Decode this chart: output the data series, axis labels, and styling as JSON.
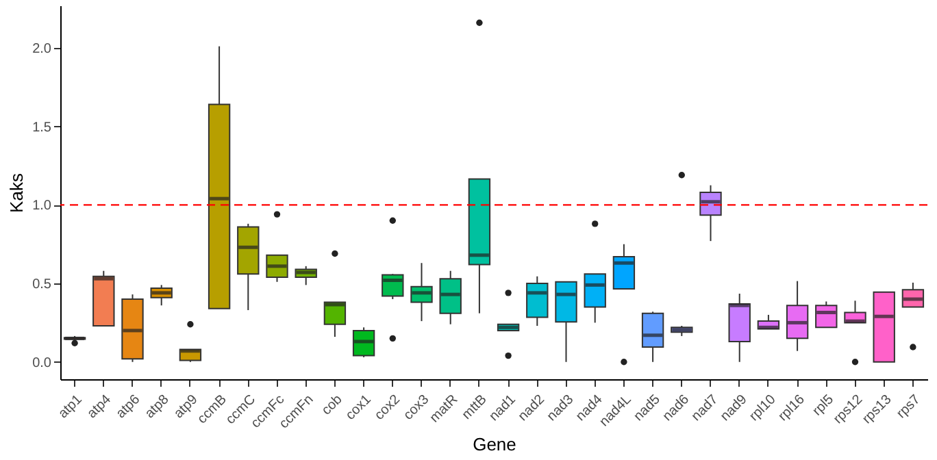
{
  "chart_data": {
    "type": "box",
    "xlabel": "Gene",
    "ylabel": "Kaks",
    "categories": [
      "atp1",
      "atp4",
      "atp6",
      "atp8",
      "atp9",
      "ccmB",
      "ccmC",
      "ccmFc",
      "ccmFn",
      "cob",
      "cox1",
      "cox2",
      "cox3",
      "matR",
      "mttB",
      "nad1",
      "nad2",
      "nad3",
      "nad4",
      "nad4L",
      "nad5",
      "nad6",
      "nad7",
      "nad9",
      "rpl10",
      "rpl16",
      "rpl5",
      "rps12",
      "rps13",
      "rps7"
    ],
    "colors": [
      "#f8766d",
      "#f27d52",
      "#e68613",
      "#d89000",
      "#c99800",
      "#b79f00",
      "#a3a500",
      "#8dab00",
      "#72b000",
      "#53b400",
      "#00b81f",
      "#00bb4e",
      "#00be6c",
      "#00c087",
      "#00c19f",
      "#00bfb4",
      "#00bdd0",
      "#00b8e5",
      "#00b0f6",
      "#00a5ff",
      "#619cff",
      "#8b93ff",
      "#b983ff",
      "#c77cff",
      "#dc71fa",
      "#e76bf3",
      "#f265e7",
      "#fa62db",
      "#ff61c9",
      "#ff65ac"
    ],
    "boxes": [
      {
        "low": 0.14,
        "q1": 0.145,
        "median": 0.15,
        "q3": 0.155,
        "high": 0.165,
        "outliers": [
          0.12
        ]
      },
      {
        "low": 0.23,
        "q1": 0.23,
        "median": 0.53,
        "q3": 0.545,
        "high": 0.58
      },
      {
        "low": 0.0,
        "q1": 0.02,
        "median": 0.2,
        "q3": 0.4,
        "high": 0.43
      },
      {
        "low": 0.36,
        "q1": 0.41,
        "median": 0.44,
        "q3": 0.47,
        "high": 0.49
      },
      {
        "low": 0.0,
        "q1": 0.01,
        "median": 0.07,
        "q3": 0.08,
        "high": 0.08,
        "outliers": [
          0.24
        ]
      },
      {
        "low": 0.34,
        "q1": 0.34,
        "median": 1.04,
        "q3": 1.64,
        "high": 2.01
      },
      {
        "low": 0.33,
        "q1": 0.56,
        "median": 0.73,
        "q3": 0.86,
        "high": 0.88
      },
      {
        "low": 0.51,
        "q1": 0.54,
        "median": 0.61,
        "q3": 0.68,
        "high": 0.68,
        "outliers": [
          0.94
        ]
      },
      {
        "low": 0.49,
        "q1": 0.54,
        "median": 0.57,
        "q3": 0.59,
        "high": 0.61
      },
      {
        "low": 0.16,
        "q1": 0.24,
        "median": 0.365,
        "q3": 0.38,
        "high": 0.38,
        "outliers": [
          0.69
        ]
      },
      {
        "low": 0.03,
        "q1": 0.04,
        "median": 0.13,
        "q3": 0.2,
        "high": 0.22
      },
      {
        "low": 0.4,
        "q1": 0.42,
        "median": 0.52,
        "q3": 0.555,
        "high": 0.56,
        "outliers": [
          0.9,
          0.15
        ]
      },
      {
        "low": 0.26,
        "q1": 0.38,
        "median": 0.44,
        "q3": 0.48,
        "high": 0.63
      },
      {
        "low": 0.24,
        "q1": 0.31,
        "median": 0.43,
        "q3": 0.53,
        "high": 0.58
      },
      {
        "low": 0.31,
        "q1": 0.62,
        "median": 0.68,
        "q3": 1.165,
        "high": 1.165,
        "outliers": [
          2.16
        ]
      },
      {
        "low": 0.2,
        "q1": 0.2,
        "median": 0.22,
        "q3": 0.24,
        "high": 0.24,
        "outliers": [
          0.44,
          0.04
        ]
      },
      {
        "low": 0.23,
        "q1": 0.285,
        "median": 0.44,
        "q3": 0.5,
        "high": 0.545
      },
      {
        "low": 0.0,
        "q1": 0.255,
        "median": 0.43,
        "q3": 0.51,
        "high": 0.51
      },
      {
        "low": 0.25,
        "q1": 0.35,
        "median": 0.49,
        "q3": 0.56,
        "high": 0.56,
        "outliers": [
          0.88
        ]
      },
      {
        "low": 0.465,
        "q1": 0.465,
        "median": 0.63,
        "q3": 0.67,
        "high": 0.75,
        "outliers": [
          0.0
        ]
      },
      {
        "low": 0.0,
        "q1": 0.095,
        "median": 0.17,
        "q3": 0.31,
        "high": 0.32
      },
      {
        "low": 0.165,
        "q1": 0.19,
        "median": 0.205,
        "q3": 0.22,
        "high": 0.23,
        "outliers": [
          1.19
        ]
      },
      {
        "low": 0.77,
        "q1": 0.935,
        "median": 1.02,
        "q3": 1.08,
        "high": 1.125
      },
      {
        "low": 0.0,
        "q1": 0.13,
        "median": 0.36,
        "q3": 0.37,
        "high": 0.435
      },
      {
        "low": 0.21,
        "q1": 0.21,
        "median": 0.22,
        "q3": 0.26,
        "high": 0.3
      },
      {
        "low": 0.07,
        "q1": 0.15,
        "median": 0.25,
        "q3": 0.36,
        "high": 0.515
      },
      {
        "low": 0.22,
        "q1": 0.22,
        "median": 0.315,
        "q3": 0.36,
        "high": 0.385
      },
      {
        "low": 0.25,
        "q1": 0.25,
        "median": 0.26,
        "q3": 0.315,
        "high": 0.39,
        "outliers": [
          0.0
        ]
      },
      {
        "low": 0.0,
        "q1": 0.0,
        "median": 0.29,
        "q3": 0.445,
        "high": 0.445
      },
      {
        "low": 0.35,
        "q1": 0.35,
        "median": 0.4,
        "q3": 0.46,
        "high": 0.505,
        "outliers": [
          0.095
        ]
      }
    ],
    "ylim": [
      -0.11,
      2.27
    ],
    "yticks": [
      {
        "value": 0,
        "label": "0.0"
      },
      0.5,
      {
        "value": 1,
        "label": "1.0"
      },
      1.5,
      {
        "value": 2,
        "label": "2.0"
      }
    ],
    "ref_lines": [
      {
        "axis": "y",
        "value": 1,
        "color": "#ff0000",
        "line_style": "dashed"
      }
    ]
  }
}
